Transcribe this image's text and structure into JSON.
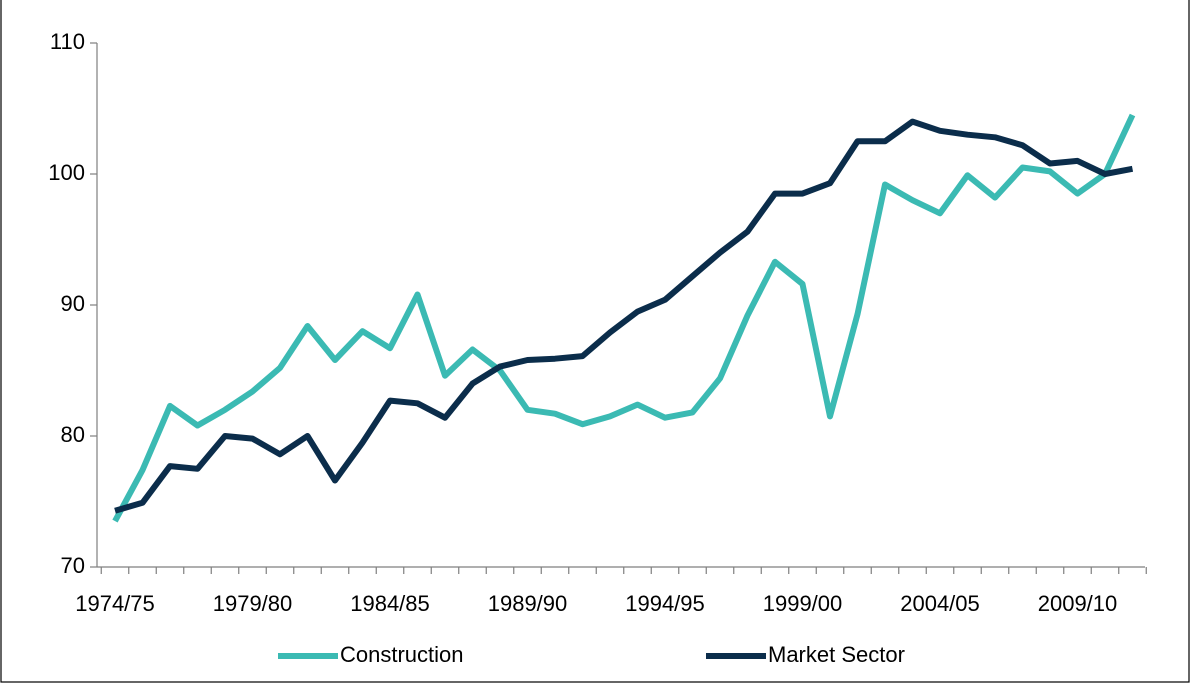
{
  "chart_data": {
    "type": "line",
    "categories": [
      "1974/75",
      null,
      null,
      null,
      null,
      "1979/80",
      null,
      null,
      null,
      null,
      "1984/85",
      null,
      null,
      null,
      null,
      "1989/90",
      null,
      null,
      null,
      null,
      "1994/95",
      null,
      null,
      null,
      null,
      "1999/00",
      null,
      null,
      null,
      null,
      "2004/05",
      null,
      null,
      null,
      null,
      "2009/10",
      null,
      null
    ],
    "series": [
      {
        "name": "Construction",
        "color": "#3bbab3",
        "values": [
          73.5,
          77.4,
          82.3,
          80.8,
          82,
          83.4,
          85.2,
          88.4,
          85.8,
          88,
          86.7,
          90.8,
          84.6,
          86.6,
          85,
          82,
          81.7,
          80.9,
          81.5,
          82.4,
          81.4,
          81.8,
          84.4,
          89.2,
          93.3,
          91.6,
          81.5,
          89.3,
          99.2,
          98,
          97,
          99.9,
          98.2,
          100.5,
          100.2,
          98.5,
          100,
          104.5
        ]
      },
      {
        "name": "Market Sector",
        "color": "#0b2d4b",
        "values": [
          74.3,
          74.9,
          77.7,
          77.5,
          80,
          79.8,
          78.6,
          80,
          76.6,
          79.5,
          82.7,
          82.5,
          81.4,
          84,
          85.3,
          85.8,
          85.9,
          86.1,
          87.9,
          89.5,
          90.4,
          92.2,
          94,
          95.6,
          98.5,
          98.5,
          99.3,
          102.5,
          102.5,
          104,
          103.3,
          103,
          102.8,
          102.2,
          100.8,
          101,
          100,
          100.4
        ]
      }
    ],
    "ylim": [
      70,
      110
    ],
    "yticks": [
      70,
      80,
      90,
      100,
      110
    ],
    "grid": false,
    "legend": "bottom"
  }
}
